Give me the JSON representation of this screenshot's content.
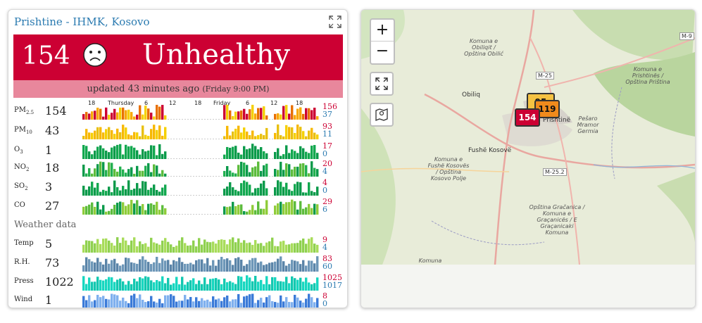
{
  "station": {
    "title": "Prishtine - IHMK, Kosovo",
    "aqi": "154",
    "status": "Unhealthy",
    "status_color": "#cc0033",
    "updated": "updated 43 minutes ago",
    "updated_time": "(Friday 9:00 PM)",
    "expand_icon": "expand-icon"
  },
  "time_axis": [
    "18",
    "Thursday",
    "6",
    "12",
    "18",
    "Friday",
    "6",
    "12",
    "18"
  ],
  "pollutants": [
    {
      "label": "PM",
      "sub": "2.5",
      "value": "154",
      "max": "156",
      "min": "37"
    },
    {
      "label": "PM",
      "sub": "10",
      "value": "43",
      "max": "93",
      "min": "11"
    },
    {
      "label": "O",
      "sub": "3",
      "value": "1",
      "max": "17",
      "min": "0"
    },
    {
      "label": "NO",
      "sub": "2",
      "value": "18",
      "max": "20",
      "min": "4"
    },
    {
      "label": "SO",
      "sub": "2",
      "value": "3",
      "max": "4",
      "min": "0"
    },
    {
      "label": "CO",
      "sub": "",
      "value": "27",
      "max": "29",
      "min": "6"
    }
  ],
  "weather_title": "Weather data",
  "weather": [
    {
      "label": "Temp",
      "value": "5",
      "max": "9",
      "min": "4"
    },
    {
      "label": "R.H.",
      "value": "73",
      "max": "83",
      "min": "60"
    },
    {
      "label": "Press",
      "value": "1022",
      "max": "1025",
      "min": "1017"
    },
    {
      "label": "Wind",
      "value": "1",
      "max": "8",
      "min": "0"
    }
  ],
  "map": {
    "zoom_in": "+",
    "zoom_out": "−",
    "markers": [
      {
        "value": "95",
        "color": "#f5c242"
      },
      {
        "value": "119",
        "color": "#f08a1c"
      },
      {
        "value": "154",
        "color": "#cc0033"
      }
    ],
    "towns": [
      "Obiliq",
      "Fushë Kosovë",
      "Prishtinë"
    ],
    "labels": [
      "Komuna e Obiliqit / Opština Obilić",
      "Komuna e Prishtinës / Opština Priština",
      "Pešaro Mramor Germia",
      "Komuna e Fushë Kosovës / Opština Kosovo Polje",
      "Opština Gračanica / Komuna e Graçanicës / E Graçanicaki Komuna",
      "Komuna"
    ],
    "roads": [
      "M-9",
      "M-25",
      "M-25.2"
    ]
  }
}
